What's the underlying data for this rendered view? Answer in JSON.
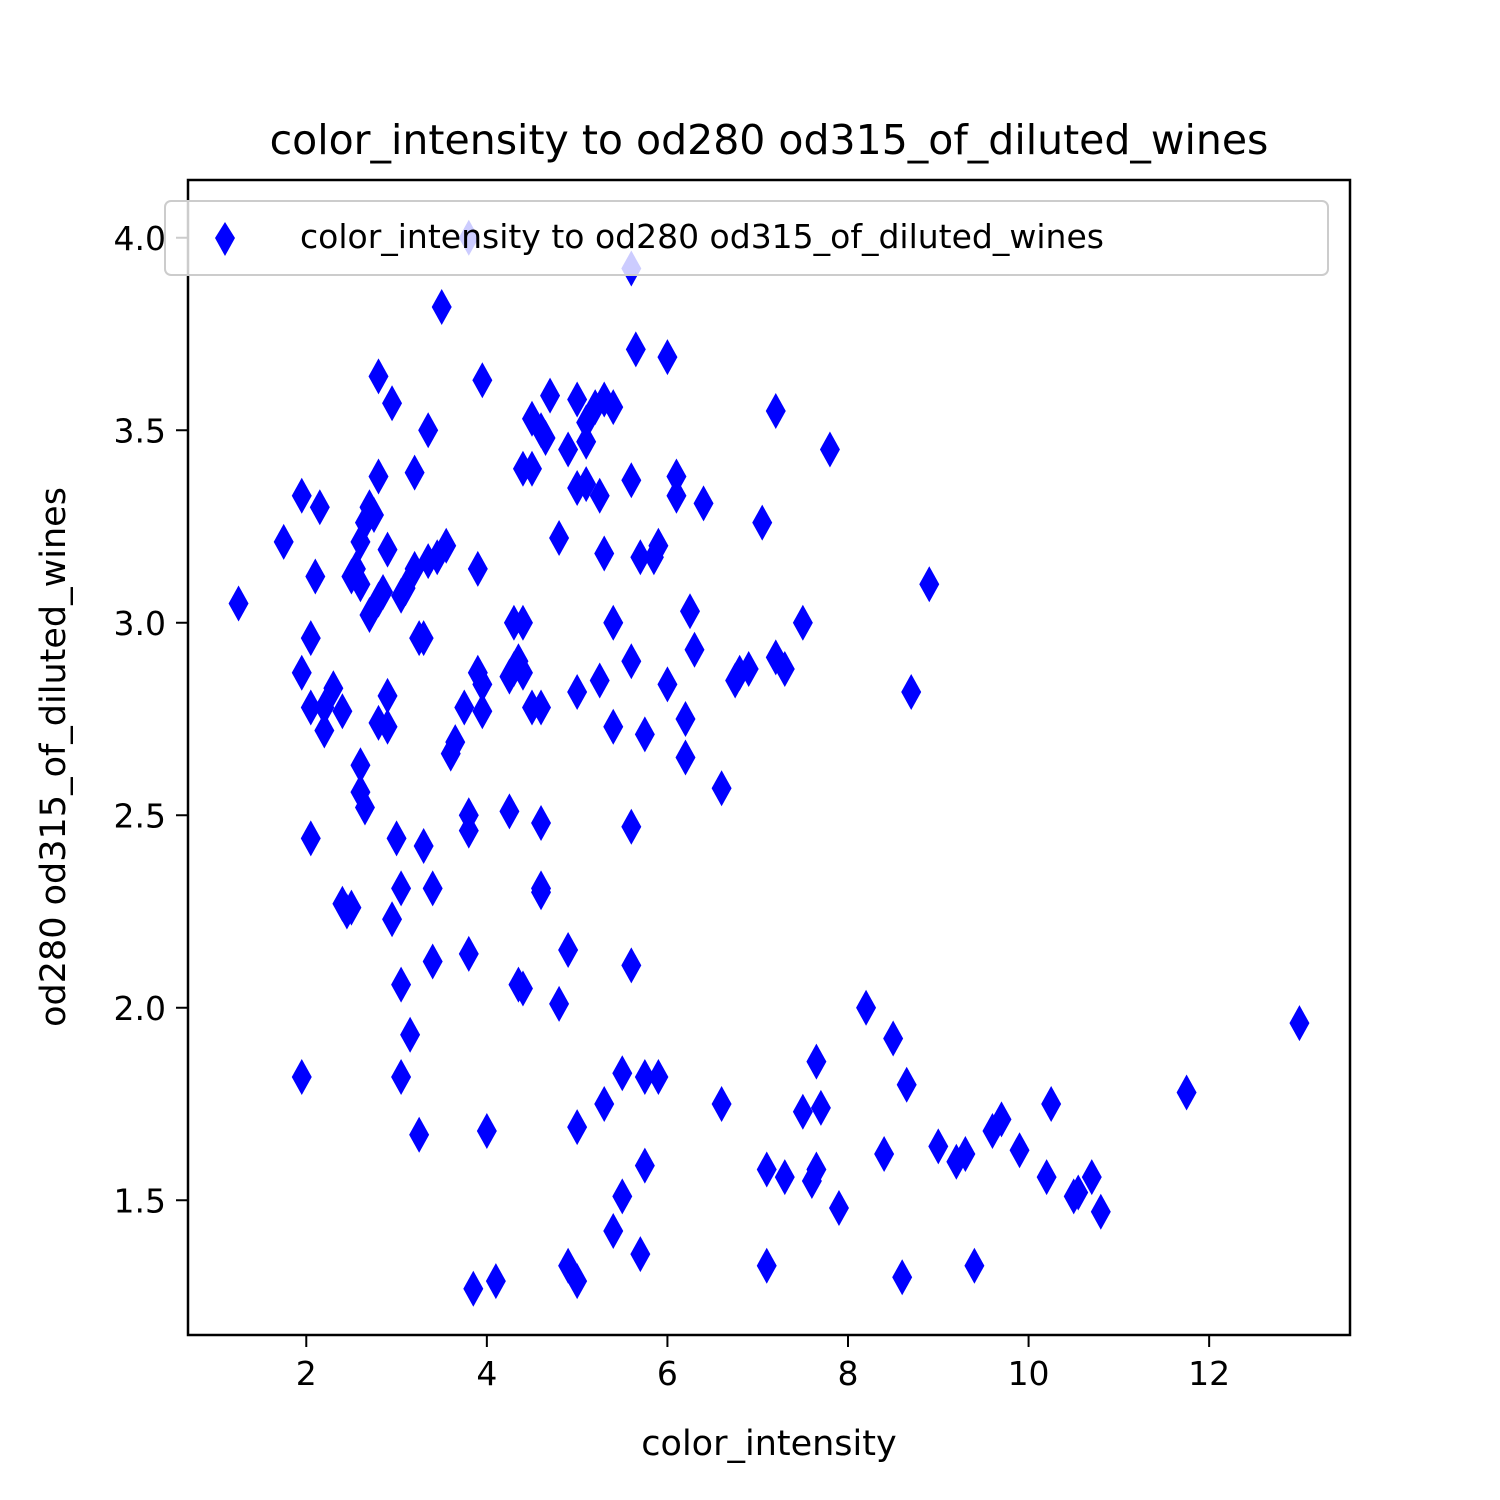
{
  "chart_data": {
    "type": "scatter",
    "title": "color_intensity to od280 od315_of_diluted_wines",
    "xlabel": "color_intensity",
    "ylabel": "od280 od315_of_diluted_wines",
    "xlim": [
      0.69,
      13.56
    ],
    "ylim": [
      1.15,
      4.15
    ],
    "xticks": [
      2,
      4,
      6,
      8,
      10,
      12
    ],
    "yticks": [
      1.5,
      2.0,
      2.5,
      3.0,
      3.5,
      4.0
    ],
    "grid": false,
    "legend_position": "top",
    "series": [
      {
        "name": "color_intensity to od280 od315_of_diluted_wines",
        "color": "#0000ff",
        "marker": "thin-diamond",
        "points": [
          [
            3.8,
            4.0
          ],
          [
            5.6,
            3.92
          ],
          [
            3.5,
            3.82
          ],
          [
            5.65,
            3.71
          ],
          [
            6.0,
            3.69
          ],
          [
            2.8,
            3.64
          ],
          [
            3.95,
            3.63
          ],
          [
            4.7,
            3.59
          ],
          [
            5.0,
            3.58
          ],
          [
            5.3,
            3.58
          ],
          [
            2.95,
            3.57
          ],
          [
            5.4,
            3.56
          ],
          [
            5.2,
            3.56
          ],
          [
            7.2,
            3.55
          ],
          [
            4.5,
            3.53
          ],
          [
            5.1,
            3.52
          ],
          [
            3.35,
            3.5
          ],
          [
            4.6,
            3.5
          ],
          [
            4.65,
            3.48
          ],
          [
            5.1,
            3.47
          ],
          [
            4.9,
            3.45
          ],
          [
            7.8,
            3.45
          ],
          [
            4.4,
            3.4
          ],
          [
            4.5,
            3.4
          ],
          [
            3.2,
            3.39
          ],
          [
            6.1,
            3.38
          ],
          [
            2.8,
            3.38
          ],
          [
            5.6,
            3.37
          ],
          [
            5.1,
            3.36
          ],
          [
            5.0,
            3.35
          ],
          [
            6.1,
            3.33
          ],
          [
            1.95,
            3.33
          ],
          [
            5.25,
            3.33
          ],
          [
            6.4,
            3.31
          ],
          [
            2.15,
            3.3
          ],
          [
            2.7,
            3.3
          ],
          [
            2.75,
            3.28
          ],
          [
            2.65,
            3.26
          ],
          [
            7.05,
            3.26
          ],
          [
            4.8,
            3.22
          ],
          [
            2.6,
            3.21
          ],
          [
            1.75,
            3.21
          ],
          [
            5.9,
            3.2
          ],
          [
            3.55,
            3.2
          ],
          [
            2.9,
            3.19
          ],
          [
            5.3,
            3.18
          ],
          [
            3.45,
            3.17
          ],
          [
            5.7,
            3.17
          ],
          [
            5.85,
            3.17
          ],
          [
            3.35,
            3.16
          ],
          [
            3.2,
            3.14
          ],
          [
            2.55,
            3.14
          ],
          [
            3.9,
            3.14
          ],
          [
            2.5,
            3.12
          ],
          [
            2.1,
            3.12
          ],
          [
            2.6,
            3.1
          ],
          [
            8.9,
            3.1
          ],
          [
            3.1,
            3.09
          ],
          [
            2.85,
            3.08
          ],
          [
            3.05,
            3.07
          ],
          [
            2.8,
            3.06
          ],
          [
            1.25,
            3.05
          ],
          [
            6.25,
            3.03
          ],
          [
            2.7,
            3.02
          ],
          [
            4.3,
            3.0
          ],
          [
            4.4,
            3.0
          ],
          [
            7.5,
            3.0
          ],
          [
            5.4,
            3.0
          ],
          [
            3.25,
            2.96
          ],
          [
            2.05,
            2.96
          ],
          [
            3.3,
            2.96
          ],
          [
            6.3,
            2.93
          ],
          [
            7.2,
            2.91
          ],
          [
            4.35,
            2.9
          ],
          [
            5.6,
            2.9
          ],
          [
            4.3,
            2.88
          ],
          [
            6.9,
            2.88
          ],
          [
            3.9,
            2.87
          ],
          [
            1.95,
            2.87
          ],
          [
            4.4,
            2.87
          ],
          [
            6.8,
            2.87
          ],
          [
            4.25,
            2.86
          ],
          [
            7.3,
            2.88
          ],
          [
            5.25,
            2.85
          ],
          [
            6.75,
            2.85
          ],
          [
            3.95,
            2.84
          ],
          [
            6.0,
            2.84
          ],
          [
            2.3,
            2.83
          ],
          [
            5.0,
            2.82
          ],
          [
            8.7,
            2.82
          ],
          [
            2.9,
            2.81
          ],
          [
            2.05,
            2.78
          ],
          [
            3.75,
            2.78
          ],
          [
            4.5,
            2.78
          ],
          [
            2.2,
            2.78
          ],
          [
            4.6,
            2.78
          ],
          [
            2.4,
            2.77
          ],
          [
            3.95,
            2.77
          ],
          [
            6.2,
            2.75
          ],
          [
            2.8,
            2.74
          ],
          [
            2.9,
            2.73
          ],
          [
            5.4,
            2.73
          ],
          [
            2.2,
            2.72
          ],
          [
            5.75,
            2.71
          ],
          [
            3.65,
            2.69
          ],
          [
            3.6,
            2.66
          ],
          [
            6.2,
            2.65
          ],
          [
            2.6,
            2.63
          ],
          [
            6.6,
            2.57
          ],
          [
            2.6,
            2.56
          ],
          [
            2.65,
            2.52
          ],
          [
            4.25,
            2.51
          ],
          [
            3.8,
            2.5
          ],
          [
            4.6,
            2.48
          ],
          [
            5.6,
            2.47
          ],
          [
            3.8,
            2.46
          ],
          [
            2.05,
            2.44
          ],
          [
            3.0,
            2.44
          ],
          [
            3.3,
            2.42
          ],
          [
            3.05,
            2.31
          ],
          [
            3.4,
            2.31
          ],
          [
            4.6,
            2.31
          ],
          [
            4.6,
            2.3
          ],
          [
            2.4,
            2.27
          ],
          [
            2.5,
            2.26
          ],
          [
            2.45,
            2.25
          ],
          [
            2.95,
            2.23
          ],
          [
            4.9,
            2.15
          ],
          [
            3.8,
            2.14
          ],
          [
            3.4,
            2.12
          ],
          [
            5.6,
            2.11
          ],
          [
            4.35,
            2.06
          ],
          [
            3.05,
            2.06
          ],
          [
            4.4,
            2.05
          ],
          [
            4.8,
            2.01
          ],
          [
            8.2,
            2.0
          ],
          [
            13.0,
            1.96
          ],
          [
            3.15,
            1.93
          ],
          [
            8.5,
            1.92
          ],
          [
            7.65,
            1.86
          ],
          [
            5.5,
            1.83
          ],
          [
            5.75,
            1.82
          ],
          [
            5.9,
            1.82
          ],
          [
            1.95,
            1.82
          ],
          [
            3.05,
            1.82
          ],
          [
            8.65,
            1.8
          ],
          [
            11.75,
            1.78
          ],
          [
            5.3,
            1.75
          ],
          [
            6.6,
            1.75
          ],
          [
            10.25,
            1.75
          ],
          [
            7.5,
            1.73
          ],
          [
            7.7,
            1.74
          ],
          [
            9.7,
            1.71
          ],
          [
            9.6,
            1.68
          ],
          [
            5.0,
            1.69
          ],
          [
            4.0,
            1.68
          ],
          [
            3.25,
            1.67
          ],
          [
            9.0,
            1.64
          ],
          [
            9.9,
            1.63
          ],
          [
            8.4,
            1.62
          ],
          [
            9.3,
            1.62
          ],
          [
            9.2,
            1.6
          ],
          [
            5.75,
            1.59
          ],
          [
            7.1,
            1.58
          ],
          [
            7.65,
            1.58
          ],
          [
            10.7,
            1.56
          ],
          [
            7.3,
            1.56
          ],
          [
            10.2,
            1.56
          ],
          [
            7.6,
            1.55
          ],
          [
            10.55,
            1.52
          ],
          [
            5.5,
            1.51
          ],
          [
            10.5,
            1.51
          ],
          [
            7.9,
            1.48
          ],
          [
            10.8,
            1.47
          ],
          [
            5.4,
            1.42
          ],
          [
            5.7,
            1.36
          ],
          [
            7.1,
            1.33
          ],
          [
            4.9,
            1.33
          ],
          [
            9.4,
            1.33
          ],
          [
            5.0,
            1.29
          ],
          [
            8.6,
            1.3
          ],
          [
            4.1,
            1.29
          ],
          [
            3.85,
            1.27
          ]
        ]
      }
    ]
  }
}
